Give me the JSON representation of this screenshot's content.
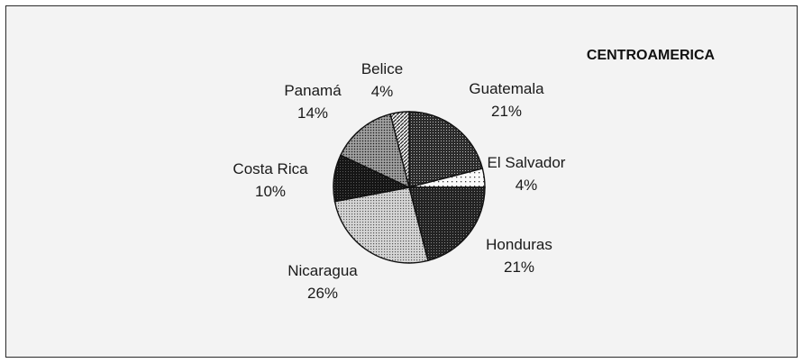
{
  "chart_data": {
    "type": "pie",
    "title": "CENTROAMERICA",
    "slices": [
      {
        "label": "Guatemala",
        "pct_label": "21%",
        "value": 21,
        "pattern": "pat-dark-dots"
      },
      {
        "label": "El Salvador",
        "pct_label": "4%",
        "value": 4,
        "pattern": "pat-sparse-dots"
      },
      {
        "label": "Honduras",
        "pct_label": "21%",
        "value": 21,
        "pattern": "pat-dark-grain"
      },
      {
        "label": "Nicaragua",
        "pct_label": "26%",
        "value": 26,
        "pattern": "pat-light-dots"
      },
      {
        "label": "Costa Rica",
        "pct_label": "10%",
        "value": 10,
        "pattern": "pat-black-grain"
      },
      {
        "label": "Panamá",
        "pct_label": "14%",
        "value": 14,
        "pattern": "pat-medium-dots"
      },
      {
        "label": "Belice",
        "pct_label": "4%",
        "value": 4,
        "pattern": "pat-diagonal"
      }
    ],
    "start": "12 o'clock",
    "direction": "clockwise",
    "legend": "none"
  }
}
